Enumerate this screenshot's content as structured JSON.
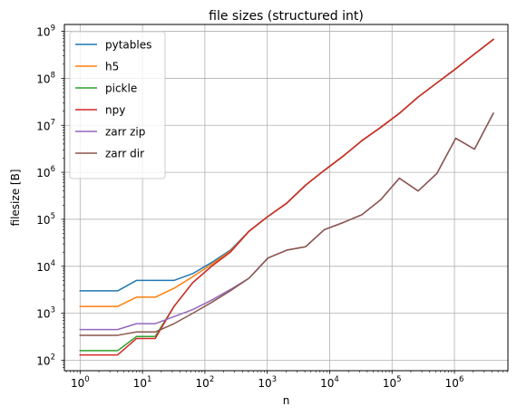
{
  "chart_data": {
    "type": "line",
    "title": "file sizes (structured int)",
    "xlabel": "n",
    "ylabel": "filesize [B]",
    "xscale": "log",
    "yscale": "log",
    "xlim": [
      0.56,
      7200000
    ],
    "ylim": [
      60,
      1400000000
    ],
    "grid": true,
    "legend_position": "top-left",
    "x_ticks": [
      {
        "base": "10",
        "exp": "0",
        "value": 1
      },
      {
        "base": "10",
        "exp": "1",
        "value": 10
      },
      {
        "base": "10",
        "exp": "2",
        "value": 100
      },
      {
        "base": "10",
        "exp": "3",
        "value": 1000
      },
      {
        "base": "10",
        "exp": "4",
        "value": 10000
      },
      {
        "base": "10",
        "exp": "5",
        "value": 100000
      },
      {
        "base": "10",
        "exp": "6",
        "value": 1000000
      }
    ],
    "y_ticks": [
      {
        "base": "10",
        "exp": "2",
        "value": 100
      },
      {
        "base": "10",
        "exp": "3",
        "value": 1000
      },
      {
        "base": "10",
        "exp": "4",
        "value": 10000
      },
      {
        "base": "10",
        "exp": "5",
        "value": 100000
      },
      {
        "base": "10",
        "exp": "6",
        "value": 1000000
      },
      {
        "base": "10",
        "exp": "7",
        "value": 10000000
      },
      {
        "base": "10",
        "exp": "8",
        "value": 100000000
      },
      {
        "base": "10",
        "exp": "9",
        "value": 1000000000
      }
    ],
    "x": [
      1,
      2,
      4,
      8,
      16,
      32,
      64,
      128,
      256,
      512,
      1024,
      2048,
      4096,
      8192,
      16384,
      32768,
      65536,
      131072,
      262144,
      524288,
      1048576,
      2097152,
      4194304
    ],
    "series": [
      {
        "name": "pytables",
        "color": "#1f77b4",
        "values": [
          3000,
          3000,
          3000,
          5000,
          5000,
          5000,
          7000,
          12000,
          22000,
          56000,
          115000,
          220000,
          530000,
          1100000,
          2200000,
          4700000,
          9000000,
          18000000,
          40000000,
          80000000,
          160000000,
          330000000,
          670000000
        ]
      },
      {
        "name": "h5",
        "color": "#ff7f0e",
        "values": [
          1400,
          1400,
          1400,
          2200,
          2200,
          3400,
          6000,
          11000,
          21000,
          56000,
          115000,
          220000,
          530000,
          1100000,
          2200000,
          4700000,
          9000000,
          18000000,
          40000000,
          80000000,
          160000000,
          330000000,
          670000000
        ]
      },
      {
        "name": "pickle",
        "color": "#2ca02c",
        "values": [
          160,
          160,
          160,
          320,
          320,
          1400,
          4500,
          10000,
          20000,
          56000,
          115000,
          220000,
          530000,
          1100000,
          2200000,
          4700000,
          9000000,
          18000000,
          40000000,
          80000000,
          160000000,
          330000000,
          670000000
        ]
      },
      {
        "name": "npy",
        "color": "#d62728",
        "values": [
          130,
          130,
          130,
          290,
          290,
          1400,
          4500,
          10000,
          20000,
          56000,
          115000,
          220000,
          530000,
          1100000,
          2200000,
          4700000,
          9000000,
          18000000,
          40000000,
          80000000,
          160000000,
          330000000,
          670000000
        ]
      },
      {
        "name": "zarr zip",
        "color": "#9467bd",
        "values": [
          450,
          450,
          450,
          600,
          600,
          850,
          1200,
          1900,
          3200,
          5600,
          15000,
          22000,
          26000,
          60000,
          85000,
          125000,
          260000,
          750000,
          400000,
          950000,
          5300000,
          3100000,
          18000000
        ]
      },
      {
        "name": "zarr dir",
        "color": "#8c564b",
        "values": [
          340,
          340,
          340,
          400,
          400,
          600,
          1000,
          1700,
          3000,
          5600,
          15000,
          22000,
          26000,
          60000,
          85000,
          125000,
          260000,
          750000,
          400000,
          950000,
          5300000,
          3100000,
          18000000
        ]
      }
    ]
  }
}
